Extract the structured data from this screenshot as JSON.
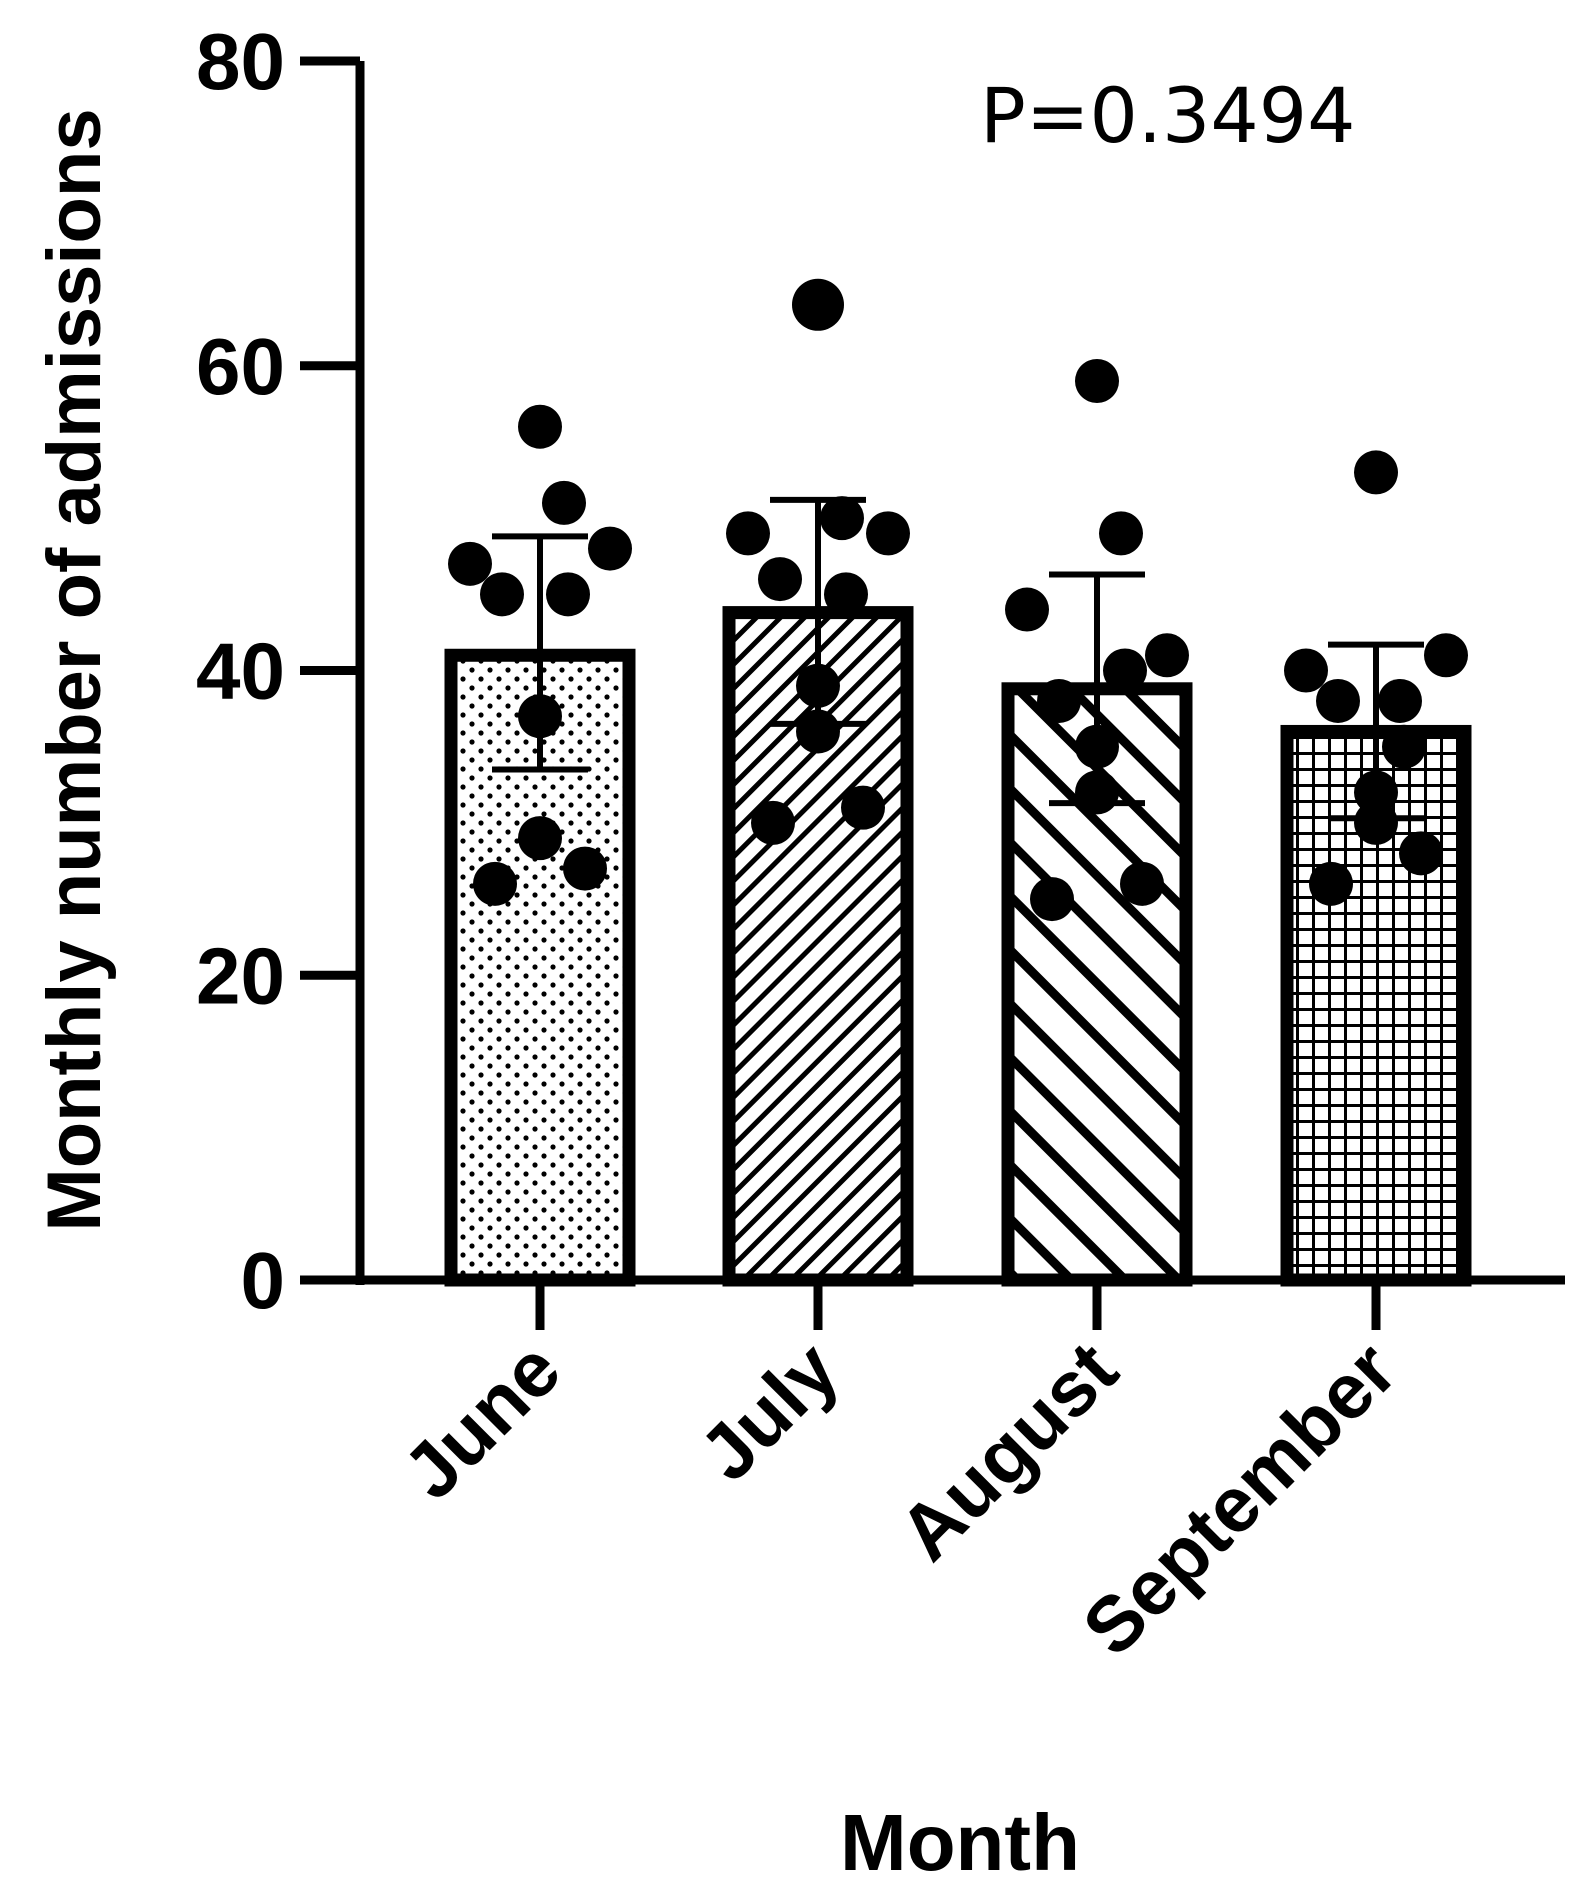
{
  "chart_data": {
    "type": "bar",
    "categories": [
      "June",
      "July",
      "August",
      "September"
    ],
    "values": [
      41,
      43.8,
      38.8,
      36
    ],
    "error_upper": [
      48.8,
      51.2,
      46.3,
      41.7
    ],
    "error_lower": [
      33.5,
      36.5,
      31.3,
      30.3
    ],
    "points": [
      [
        56,
        51,
        47,
        48,
        45,
        45,
        37,
        29,
        26,
        27
      ],
      [
        64,
        50,
        49,
        49,
        46,
        45,
        36,
        39,
        30,
        31
      ],
      [
        59,
        49,
        44,
        41,
        38,
        40,
        35,
        32,
        25,
        26
      ],
      [
        53,
        38,
        40,
        41,
        38,
        35,
        32,
        30,
        26,
        28
      ]
    ],
    "patterns": [
      "dots",
      "diagonal-fine",
      "diagonal-bold",
      "grid"
    ],
    "title": "",
    "xlabel": "Month",
    "ylabel": "Monthly number of admissions",
    "ylim": [
      0,
      80
    ],
    "yticks": [
      "0",
      "20",
      "40",
      "60",
      "80"
    ],
    "annotation": "P=0.3494",
    "grid": false,
    "legend": "none",
    "colors": {
      "ink": "#000000",
      "bar_fill": "#ffffff"
    }
  }
}
